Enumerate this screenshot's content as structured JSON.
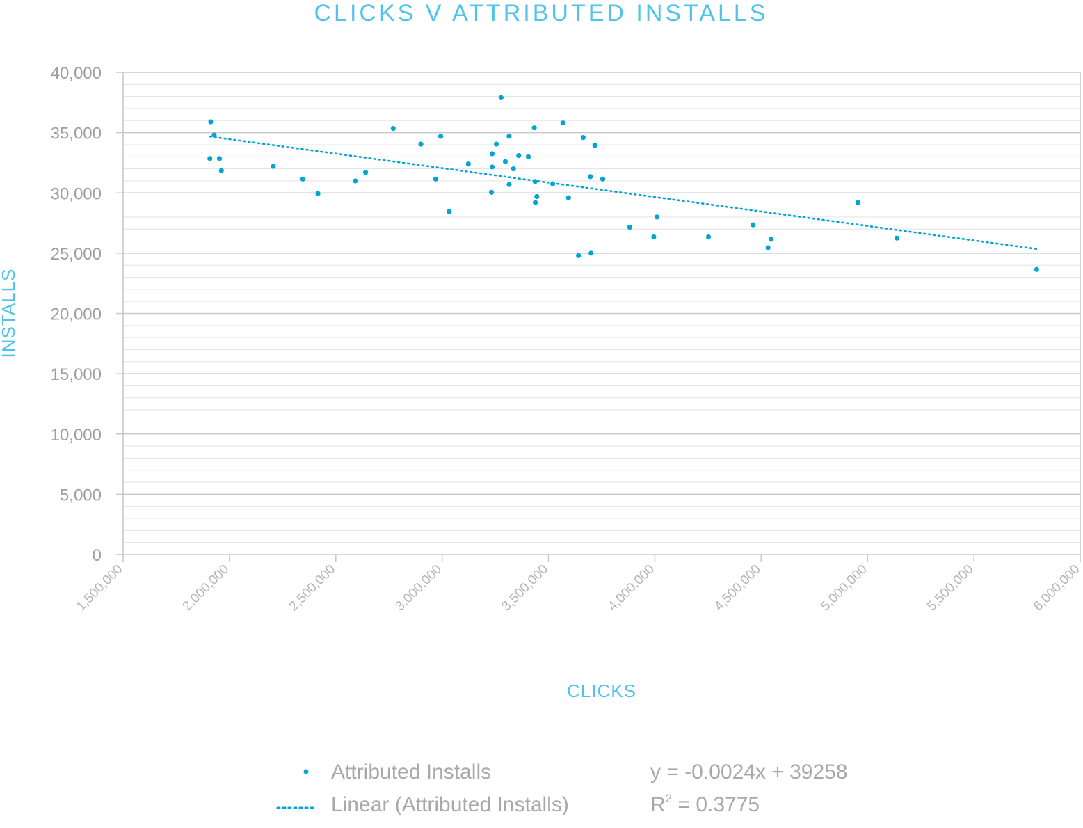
{
  "chart_data": {
    "type": "scatter",
    "title": "CLICKS V ATTRIBUTED INSTALLS",
    "xlabel": "CLICKS",
    "ylabel": "INSTALLS",
    "xlim": [
      1500000,
      6000000
    ],
    "ylim": [
      0,
      40000
    ],
    "x_ticks": [
      "1,500,000",
      "2,000,000",
      "2,500,000",
      "3,000,000",
      "3,500,000",
      "4,000,000",
      "4,500,000",
      "5,000,000",
      "5,500,000",
      "6,000,000"
    ],
    "x_tick_values": [
      1500000,
      2000000,
      2500000,
      3000000,
      3500000,
      4000000,
      4500000,
      5000000,
      5500000,
      6000000
    ],
    "y_ticks": [
      "0",
      "5,000",
      "10,000",
      "15,000",
      "20,000",
      "25,000",
      "30,000",
      "35,000",
      "40,000"
    ],
    "y_tick_values": [
      0,
      5000,
      10000,
      15000,
      20000,
      25000,
      30000,
      35000,
      40000
    ],
    "grid": "on",
    "legend_position": "bottom",
    "series": [
      {
        "name": "Attributed Installs",
        "color": "#00a5d6",
        "points": [
          [
            1912000,
            35900
          ],
          [
            1928000,
            34800
          ],
          [
            1908000,
            32850
          ],
          [
            1953000,
            32850
          ],
          [
            1962000,
            31850
          ],
          [
            2206000,
            32200
          ],
          [
            2345000,
            31150
          ],
          [
            2416000,
            29950
          ],
          [
            2592000,
            31000
          ],
          [
            2640000,
            31700
          ],
          [
            2770000,
            35350
          ],
          [
            2900000,
            34050
          ],
          [
            2993000,
            34700
          ],
          [
            2970000,
            31150
          ],
          [
            3033000,
            28450
          ],
          [
            3123000,
            32400
          ],
          [
            3235000,
            33250
          ],
          [
            3235000,
            32150
          ],
          [
            3232000,
            30050
          ],
          [
            3255000,
            34050
          ],
          [
            3277000,
            37900
          ],
          [
            3297000,
            32600
          ],
          [
            3315000,
            34700
          ],
          [
            3315000,
            30700
          ],
          [
            3335000,
            32000
          ],
          [
            3360000,
            33100
          ],
          [
            3405000,
            33000
          ],
          [
            3433000,
            35400
          ],
          [
            3437000,
            30950
          ],
          [
            3438000,
            29200
          ],
          [
            3445000,
            29700
          ],
          [
            3520000,
            30750
          ],
          [
            3568000,
            35800
          ],
          [
            3594000,
            29600
          ],
          [
            3641000,
            24800
          ],
          [
            3663000,
            34600
          ],
          [
            3697000,
            31350
          ],
          [
            3700000,
            25000
          ],
          [
            3718000,
            33950
          ],
          [
            3755000,
            31150
          ],
          [
            3882000,
            27150
          ],
          [
            3995000,
            26350
          ],
          [
            4010000,
            28000
          ],
          [
            4252000,
            26350
          ],
          [
            4462000,
            27350
          ],
          [
            4532000,
            25450
          ],
          [
            4547000,
            26150
          ],
          [
            4955000,
            29200
          ],
          [
            5138000,
            26250
          ],
          [
            5795000,
            23650
          ]
        ]
      }
    ],
    "trendline": {
      "name": "Linear (Attributed Installs)",
      "type": "linear",
      "slope": -0.0024,
      "intercept": 39258,
      "x_range": [
        1908000,
        5795000
      ],
      "color": "#00a5d6",
      "style": "dotted"
    },
    "equation_text": "y = -0.0024x + 39258",
    "r_squared_prefix": "R",
    "r_squared_sup": "2",
    "r_squared_value": " = 0.3775"
  }
}
